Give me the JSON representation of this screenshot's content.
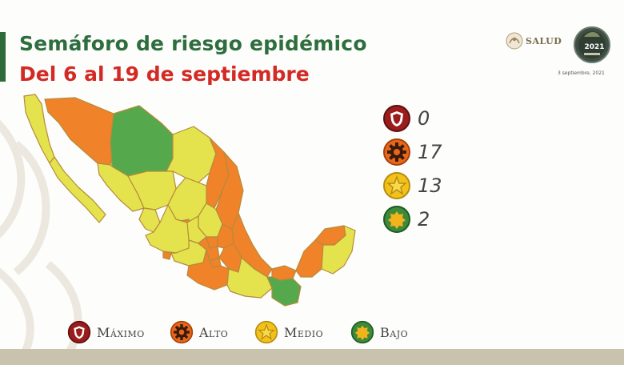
{
  "header": {
    "title": "Semáforo de riesgo epidémico",
    "subtitle": "Del 6 al 19 de septiembre"
  },
  "branding": {
    "salud_label": "SALUD",
    "year_label": "2021",
    "date_note": "3 septiembre, 2021"
  },
  "summary": [
    {
      "level": "maximo",
      "count": "0",
      "color": "#9b1c1c",
      "icon": "shield-icon"
    },
    {
      "level": "alto",
      "count": "17",
      "color": "#e8661c",
      "icon": "gear-icon"
    },
    {
      "level": "medio",
      "count": "13",
      "color": "#f2c21b",
      "icon": "star-icon"
    },
    {
      "level": "bajo",
      "count": "2",
      "color": "#3c8a3a",
      "icon": "badge-icon"
    }
  ],
  "legend": [
    {
      "label": "Máximo",
      "color": "#9b1c1c",
      "icon": "shield-icon"
    },
    {
      "label": "Alto",
      "color": "#e8661c",
      "icon": "gear-icon"
    },
    {
      "label": "Medio",
      "color": "#f2c21b",
      "icon": "star-icon"
    },
    {
      "label": "Bajo",
      "color": "#3c8a3a",
      "icon": "badge-icon"
    }
  ],
  "map_colors": {
    "yellow": "#e4e34e",
    "orange": "#f0822a",
    "green": "#55a94c"
  }
}
